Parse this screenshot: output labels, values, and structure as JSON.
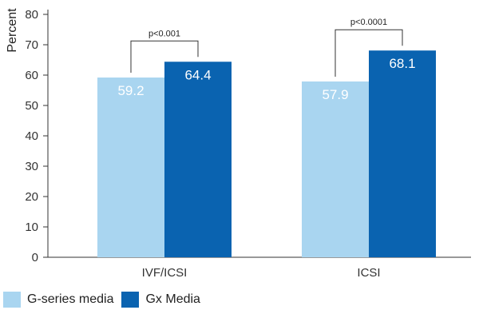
{
  "chart_data": {
    "type": "bar",
    "ylabel": "Percent",
    "ylim": [
      0,
      80
    ],
    "yticks": [
      0,
      10,
      20,
      30,
      40,
      50,
      60,
      70,
      80
    ],
    "categories": [
      "IVF/ICSI",
      "ICSI"
    ],
    "series": [
      {
        "name": "G-series media",
        "color": "#a9d5f0",
        "values": [
          59.2,
          57.9
        ]
      },
      {
        "name": "Gx Media",
        "color": "#0a63b0",
        "values": [
          64.4,
          68.1
        ]
      }
    ],
    "significance": [
      "p<0.001",
      "p<0.0001"
    ],
    "legend_position": "bottom-left",
    "grid": false
  }
}
